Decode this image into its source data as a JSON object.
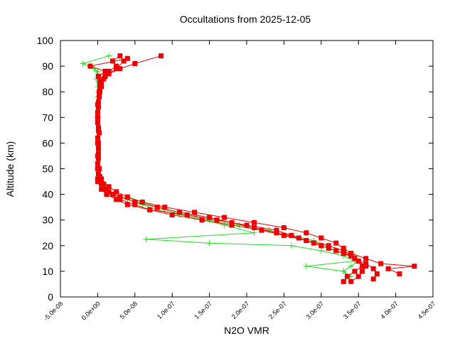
{
  "chart_data": {
    "type": "line",
    "title": "Occultations from 2025-12-05",
    "xlabel": "N2O VMR",
    "ylabel": "Altitude (km)",
    "xlim": [
      -5e-08,
      4.5e-07
    ],
    "ylim": [
      0,
      100
    ],
    "xticks": [
      {
        "value": -5e-08,
        "label": "-5.0e-08"
      },
      {
        "value": 0,
        "label": "0.0e+00"
      },
      {
        "value": 5e-08,
        "label": "5.0e-08"
      },
      {
        "value": 1e-07,
        "label": "1.0e-07"
      },
      {
        "value": 1.5e-07,
        "label": "1.5e-07"
      },
      {
        "value": 2e-07,
        "label": "2.0e-07"
      },
      {
        "value": 2.5e-07,
        "label": "2.5e-07"
      },
      {
        "value": 3e-07,
        "label": "3.0e-07"
      },
      {
        "value": 3.5e-07,
        "label": "3.5e-07"
      },
      {
        "value": 4e-07,
        "label": "4.0e-07"
      },
      {
        "value": 4.5e-07,
        "label": "4.5e-07"
      }
    ],
    "yticks": [
      0,
      10,
      20,
      30,
      40,
      50,
      60,
      70,
      80,
      90,
      100
    ],
    "grid": false,
    "series": [
      {
        "color": "#22dd22",
        "marker": "cross",
        "x": [
          1.5e-08,
          -2e-08,
          -5e-09,
          0,
          -2e-09,
          0,
          0,
          1e-09,
          0,
          0,
          2e-09,
          1e-08,
          2e-08,
          4e-08,
          6e-08,
          8e-08,
          1.1e-07,
          1.5e-07,
          1.9e-07,
          2.3e-07,
          2.6e-07,
          2.9e-07,
          3.1e-07,
          3.3e-07,
          3.45e-07,
          3.5e-07,
          3.4e-07,
          3.3e-07,
          3.35e-07,
          3.3e-07
        ],
        "values": [
          94,
          91,
          89,
          87,
          85,
          82,
          78,
          70,
          60,
          50,
          45,
          42,
          40,
          38,
          36,
          34,
          32,
          30,
          28,
          26,
          24,
          22,
          20,
          18,
          16,
          14,
          12,
          10,
          8,
          6
        ]
      },
      {
        "color": "#22dd22",
        "marker": "cross",
        "x": [
          -1e-08,
          0,
          0,
          1e-09,
          0,
          0,
          1e-09,
          5e-09,
          2e-08,
          6e-08,
          9e-08,
          1.3e-07,
          1.7e-07,
          2.1e-07,
          6.5e-08,
          1.5e-07,
          2.6e-07,
          3e-07,
          3.3e-07,
          3.45e-07,
          2.8e-07,
          3.3e-07,
          3.4e-07
        ],
        "values": [
          90,
          88,
          86,
          80,
          70,
          60,
          50,
          44,
          40,
          37,
          34,
          31,
          28,
          25,
          22.5,
          21,
          20,
          18,
          16,
          14,
          12,
          10,
          8
        ]
      },
      {
        "color": "#ee0000",
        "marker": "square",
        "x": [
          3e-08,
          2e-08,
          2.5e-08,
          1.5e-08,
          1e-08,
          5e-09,
          3e-09,
          2e-09,
          0,
          0,
          1e-09,
          1e-09,
          0,
          0,
          0,
          5e-09,
          1e-08,
          2e-08,
          3e-08,
          5e-08,
          7e-08,
          1e-07,
          1.4e-07,
          1.8e-07,
          2.2e-07,
          2.5e-07,
          2.8e-07,
          3e-07,
          3.2e-07,
          3.4e-07,
          3.5e-07,
          3.6e-07,
          3.55e-07,
          3.5e-07,
          3.4e-07
        ],
        "values": [
          94,
          92,
          90,
          88,
          86,
          84,
          82,
          80,
          75,
          70,
          65,
          60,
          55,
          50,
          46,
          44,
          42,
          40,
          38,
          36,
          34,
          32,
          30,
          28,
          26,
          24,
          22,
          20,
          18,
          16,
          14,
          12,
          10,
          8,
          6
        ]
      },
      {
        "color": "#ee0000",
        "marker": "square",
        "x": [
          8.5e-08,
          5e-08,
          3e-08,
          1.5e-08,
          8e-09,
          4e-09,
          2e-09,
          1e-09,
          0,
          2e-09,
          1e-09,
          0,
          3e-09,
          8e-09,
          1.5e-08,
          3e-08,
          5e-08,
          8e-08,
          1.1e-07,
          1.5e-07,
          1.8e-07,
          2.1e-07,
          2.4e-07,
          2.7e-07,
          2.9e-07,
          3.1e-07,
          3.3e-07,
          3.45e-07,
          3.6e-07,
          3.7e-07,
          3.75e-07,
          3.7e-07
        ],
        "values": [
          94,
          91,
          89,
          87,
          85,
          83,
          80,
          76,
          70,
          64,
          58,
          52,
          47,
          44,
          41,
          39,
          37,
          35,
          33,
          31,
          29,
          27,
          25,
          23,
          21,
          19,
          17,
          15,
          13,
          11,
          9,
          7
        ]
      },
      {
        "color": "#ee0000",
        "marker": "square",
        "x": [
          4e-08,
          -1e-08,
          1e-08,
          1e-09,
          3e-09,
          5e-09,
          2e-09,
          0,
          1e-09,
          0,
          1e-09,
          1e-09,
          0,
          5e-09,
          1.2e-08,
          2.5e-08,
          4e-08,
          7e-08,
          1.2e-07,
          1.6e-07,
          2e-07,
          2.4e-07,
          2.6e-07,
          2.8e-07,
          3.1e-07,
          3.3e-07,
          3.4e-07,
          3.5e-07,
          3.55e-07,
          3.45e-07,
          3.35e-07,
          3.3e-07
        ],
        "values": [
          93,
          90,
          88,
          86,
          84,
          82,
          78,
          72,
          66,
          60,
          54,
          48,
          45,
          42,
          40,
          38,
          36,
          34,
          32,
          30,
          28,
          26,
          24,
          22,
          20,
          18,
          16,
          14,
          12,
          10,
          8,
          6
        ]
      },
      {
        "color": "#ee0000",
        "marker": "square",
        "x": [
          3.5e-08,
          2.5e-08,
          1e-08,
          5e-09,
          3e-09,
          1e-09,
          0,
          0,
          1e-09,
          2e-09,
          5e-09,
          1.5e-08,
          2.5e-08,
          4e-08,
          6e-08,
          9e-08,
          1.3e-07,
          1.7e-07,
          2.1e-07,
          2.5e-07,
          2.8e-07,
          3e-07,
          3.2e-07,
          3.3e-07,
          3.4e-07,
          3.6e-07,
          3.8e-07,
          4.25e-07,
          3.9e-07,
          4.05e-07
        ],
        "values": [
          92,
          89,
          86,
          83,
          80,
          74,
          68,
          62,
          56,
          50,
          46,
          43,
          41,
          39,
          37,
          35,
          33,
          31,
          29,
          27,
          25,
          23,
          21,
          19,
          17,
          15,
          13,
          12,
          11,
          9
        ]
      }
    ]
  }
}
